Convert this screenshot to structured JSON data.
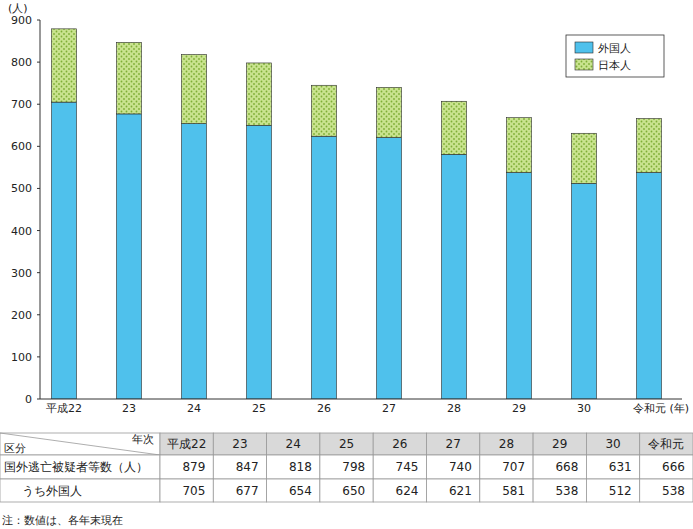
{
  "chart_data": {
    "type": "bar",
    "stacked": true,
    "y_label": "(人)",
    "x_label": "(年)",
    "categories": [
      "平成22",
      "23",
      "24",
      "25",
      "26",
      "27",
      "28",
      "29",
      "30",
      "令和元"
    ],
    "series": [
      {
        "name": "外国人",
        "color": "#4fc1ec",
        "values": [
          705,
          677,
          654,
          650,
          624,
          621,
          581,
          538,
          512,
          538
        ]
      },
      {
        "name": "日本人",
        "color": "#c9e38f",
        "values": [
          174,
          170,
          164,
          148,
          121,
          119,
          126,
          130,
          119,
          128
        ]
      }
    ],
    "ylim": [
      0,
      900
    ],
    "yticks": [
      0,
      100,
      200,
      300,
      400,
      500,
      600,
      700,
      800,
      900
    ],
    "grid": false,
    "legend": "top-right"
  },
  "table": {
    "corner_top": "年次",
    "corner_bottom": "区分",
    "columns": [
      "平成22",
      "23",
      "24",
      "25",
      "26",
      "27",
      "28",
      "29",
      "30",
      "令和元"
    ],
    "rows": [
      {
        "label": "国外逃亡被疑者等数（人）",
        "values": [
          879,
          847,
          818,
          798,
          745,
          740,
          707,
          668,
          631,
          666
        ]
      },
      {
        "label": "うち外国人",
        "values": [
          705,
          677,
          654,
          650,
          624,
          621,
          581,
          538,
          512,
          538
        ]
      }
    ]
  },
  "footnote": "注：数値は、各年末現在"
}
